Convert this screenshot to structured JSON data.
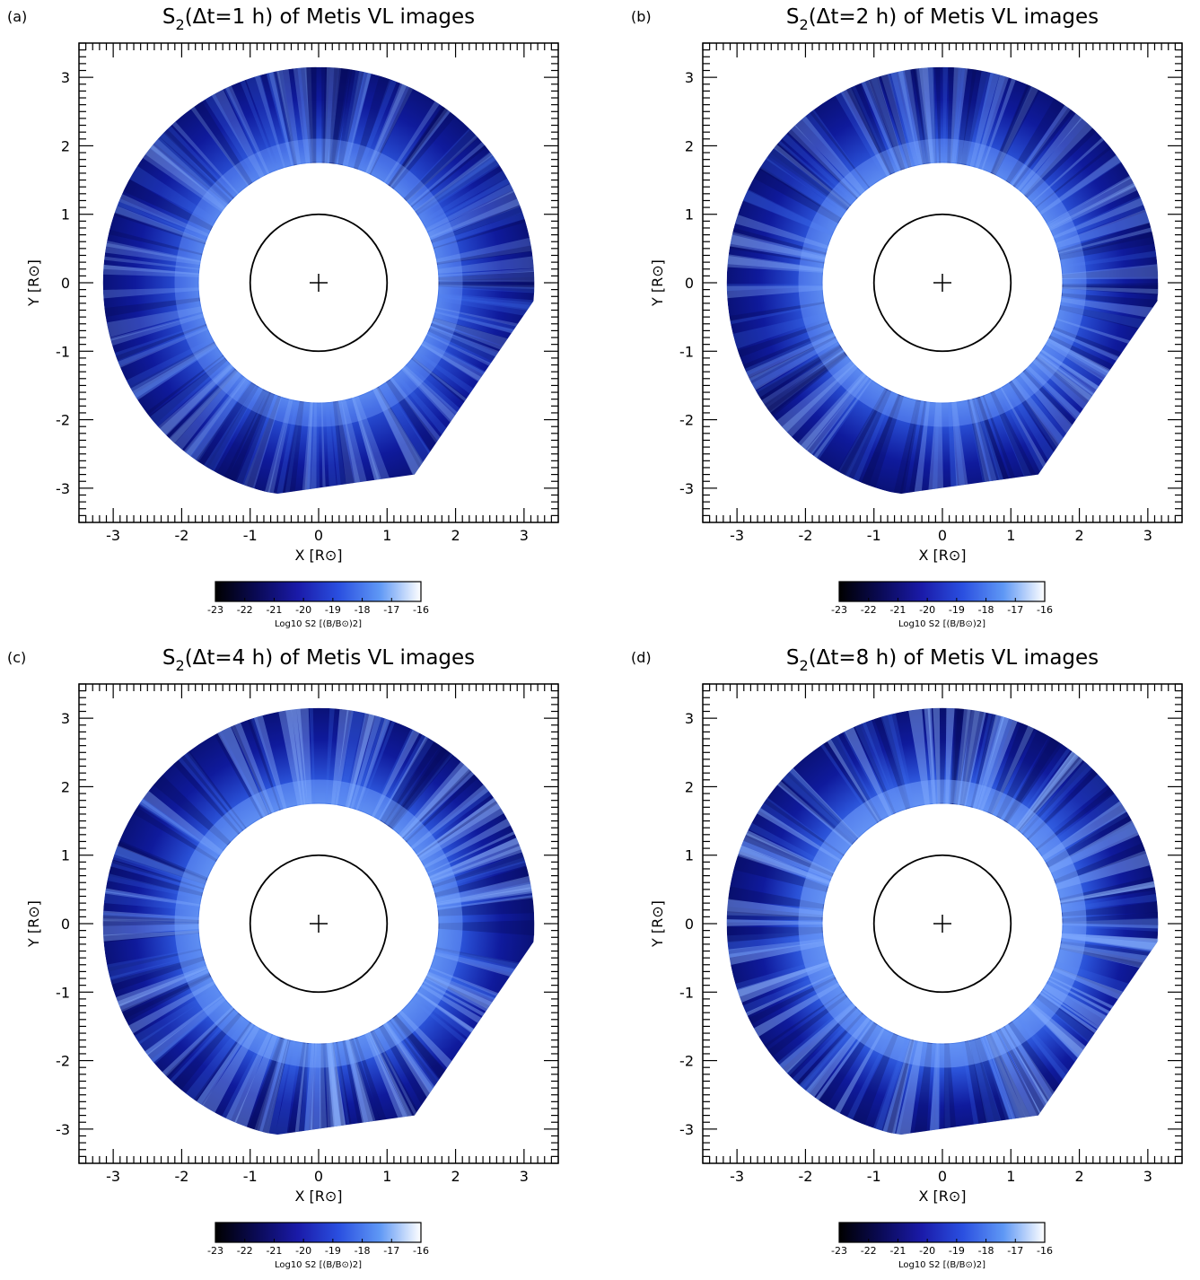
{
  "colors": {
    "colormap": [
      "#000000",
      "#0a0a55",
      "#1a1aa8",
      "#2a4fe0",
      "#5f98f5",
      "#ffffff"
    ],
    "ring_base": "#0f1a9c",
    "ring_inner_glow": "#5a90f0",
    "occulter": "#ffffff",
    "limb": "#000000"
  },
  "chart_data": [
    {
      "type": "heatmap",
      "panel_label": "(a)",
      "title": "S2(Δt=1 h) of Metis VL images",
      "title_parts": {
        "pre": "S",
        "sub": "2",
        "post": "(Δt=1 h) of Metis VL images"
      },
      "xlabel": "X [R⊙]",
      "ylabel": "Y [R⊙]",
      "xlim": [
        -3.5,
        3.5
      ],
      "ylim": [
        -3.5,
        3.5
      ],
      "xticks": [
        -3,
        -2,
        -1,
        0,
        1,
        2,
        3
      ],
      "yticks": [
        -3,
        -2,
        -1,
        0,
        1,
        2,
        3
      ],
      "occulter_radius": 1.75,
      "limb_radius": 1.0,
      "fov_outer_radius": 3.15,
      "brightness": 0.35,
      "colorbar": {
        "range": [
          -23,
          -16
        ],
        "ticks": [
          -23,
          -22,
          -21,
          -20,
          -19,
          -18,
          -17,
          -16
        ],
        "label": "Log10 S2 [(B/B⊙)2]"
      }
    },
    {
      "type": "heatmap",
      "panel_label": "(b)",
      "title": "S2(Δt=2 h) of Metis VL images",
      "title_parts": {
        "pre": "S",
        "sub": "2",
        "post": "(Δt=2 h) of Metis VL images"
      },
      "xlabel": "X [R⊙]",
      "ylabel": "Y [R⊙]",
      "xlim": [
        -3.5,
        3.5
      ],
      "ylim": [
        -3.5,
        3.5
      ],
      "xticks": [
        -3,
        -2,
        -1,
        0,
        1,
        2,
        3
      ],
      "yticks": [
        -3,
        -2,
        -1,
        0,
        1,
        2,
        3
      ],
      "occulter_radius": 1.75,
      "limb_radius": 1.0,
      "fov_outer_radius": 3.15,
      "brightness": 0.5,
      "colorbar": {
        "range": [
          -23,
          -16
        ],
        "ticks": [
          -23,
          -22,
          -21,
          -20,
          -19,
          -18,
          -17,
          -16
        ],
        "label": "Log10 S2 [(B/B⊙)2]"
      }
    },
    {
      "type": "heatmap",
      "panel_label": "(c)",
      "title": "S2(Δt=4 h) of Metis VL images",
      "title_parts": {
        "pre": "S",
        "sub": "2",
        "post": "(Δt=4 h) of Metis VL images"
      },
      "xlabel": "X [R⊙]",
      "ylabel": "Y [R⊙]",
      "xlim": [
        -3.5,
        3.5
      ],
      "ylim": [
        -3.5,
        3.5
      ],
      "xticks": [
        -3,
        -2,
        -1,
        0,
        1,
        2,
        3
      ],
      "yticks": [
        -3,
        -2,
        -1,
        0,
        1,
        2,
        3
      ],
      "occulter_radius": 1.75,
      "limb_radius": 1.0,
      "fov_outer_radius": 3.15,
      "brightness": 0.68,
      "colorbar": {
        "range": [
          -23,
          -16
        ],
        "ticks": [
          -23,
          -22,
          -21,
          -20,
          -19,
          -18,
          -17,
          -16
        ],
        "label": "Log10 S2 [(B/B⊙)2]"
      }
    },
    {
      "type": "heatmap",
      "panel_label": "(d)",
      "title": "S2(Δt=8 h) of Metis VL images",
      "title_parts": {
        "pre": "S",
        "sub": "2",
        "post": "(Δt=8 h) of Metis VL images"
      },
      "xlabel": "X [R⊙]",
      "ylabel": "Y [R⊙]",
      "xlim": [
        -3.5,
        3.5
      ],
      "ylim": [
        -3.5,
        3.5
      ],
      "xticks": [
        -3,
        -2,
        -1,
        0,
        1,
        2,
        3
      ],
      "yticks": [
        -3,
        -2,
        -1,
        0,
        1,
        2,
        3
      ],
      "occulter_radius": 1.75,
      "limb_radius": 1.0,
      "fov_outer_radius": 3.15,
      "brightness": 0.85,
      "colorbar": {
        "range": [
          -23,
          -16
        ],
        "ticks": [
          -23,
          -22,
          -21,
          -20,
          -19,
          -18,
          -17,
          -16
        ],
        "label": "Log10 S2 [(B/B⊙)2]"
      }
    }
  ]
}
